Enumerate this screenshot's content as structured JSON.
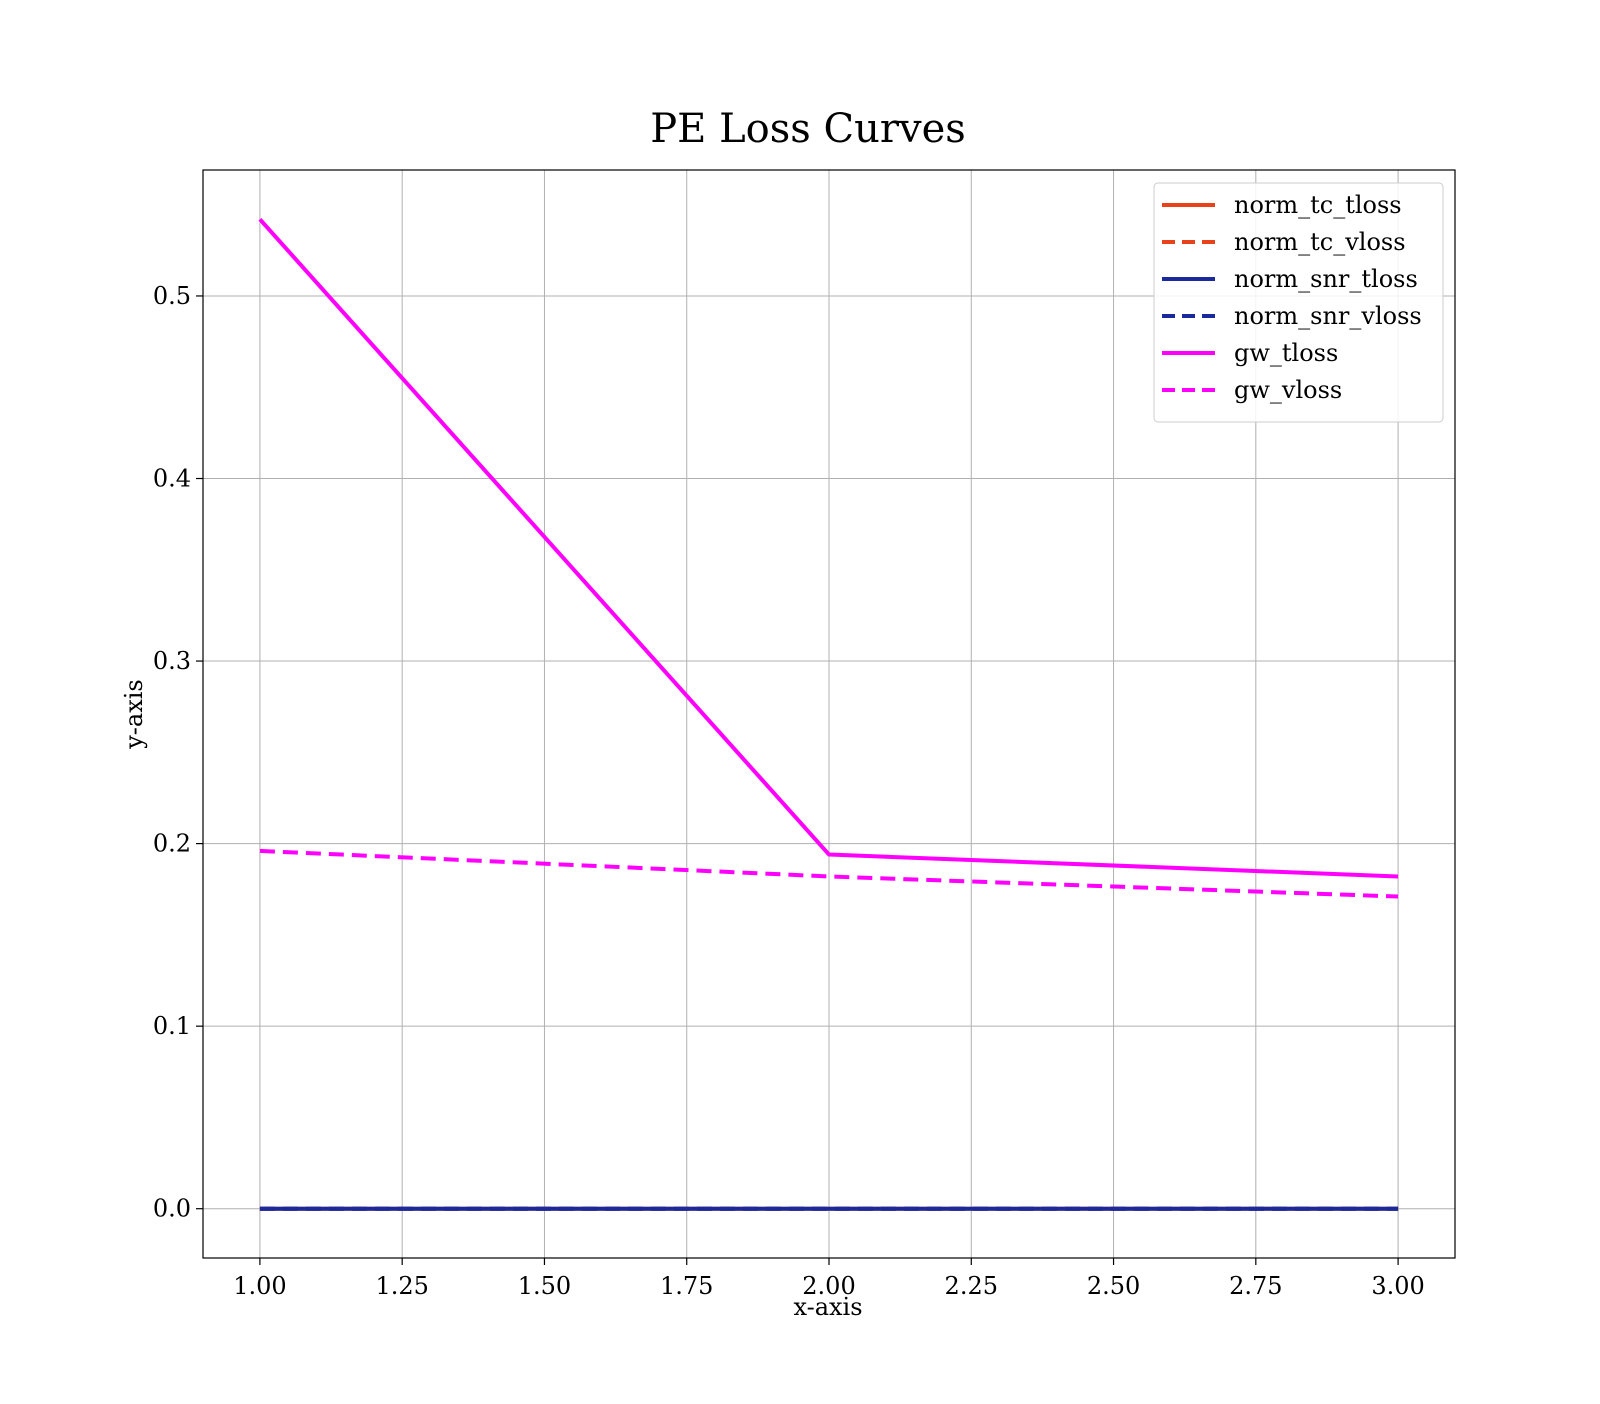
{
  "chart_data": {
    "type": "line",
    "title": "PE Loss Curves",
    "xlabel": "x-axis",
    "ylabel": "y-axis",
    "xlim": [
      0.9,
      3.1
    ],
    "ylim": [
      -0.027,
      0.569
    ],
    "xticks": [
      1.0,
      1.25,
      1.5,
      1.75,
      2.0,
      2.25,
      2.5,
      2.75,
      3.0
    ],
    "xtick_labels": [
      "1.00",
      "1.25",
      "1.50",
      "1.75",
      "2.00",
      "2.25",
      "2.50",
      "2.75",
      "3.00"
    ],
    "yticks": [
      0.0,
      0.1,
      0.2,
      0.3,
      0.4,
      0.5
    ],
    "ytick_labels": [
      "0.0",
      "0.1",
      "0.2",
      "0.3",
      "0.4",
      "0.5"
    ],
    "grid": true,
    "legend_position": "top-right",
    "x": [
      1,
      2,
      3
    ],
    "series": [
      {
        "name": "norm_tc_tloss",
        "values": [
          0.0,
          0.0,
          0.0
        ],
        "color": "#e8421a",
        "dashed": false
      },
      {
        "name": "norm_tc_vloss",
        "values": [
          0.0,
          0.0,
          0.0
        ],
        "color": "#e8421a",
        "dashed": true
      },
      {
        "name": "norm_snr_tloss",
        "values": [
          0.0,
          0.0,
          0.0
        ],
        "color": "#1a2a9c",
        "dashed": false
      },
      {
        "name": "norm_snr_vloss",
        "values": [
          0.0,
          0.0,
          0.0
        ],
        "color": "#1a2a9c",
        "dashed": true
      },
      {
        "name": "gw_tloss",
        "values": [
          0.542,
          0.194,
          0.182
        ],
        "color": "#ff00ff",
        "dashed": false
      },
      {
        "name": "gw_vloss",
        "values": [
          0.196,
          0.182,
          0.171
        ],
        "color": "#ff00ff",
        "dashed": true
      }
    ]
  }
}
